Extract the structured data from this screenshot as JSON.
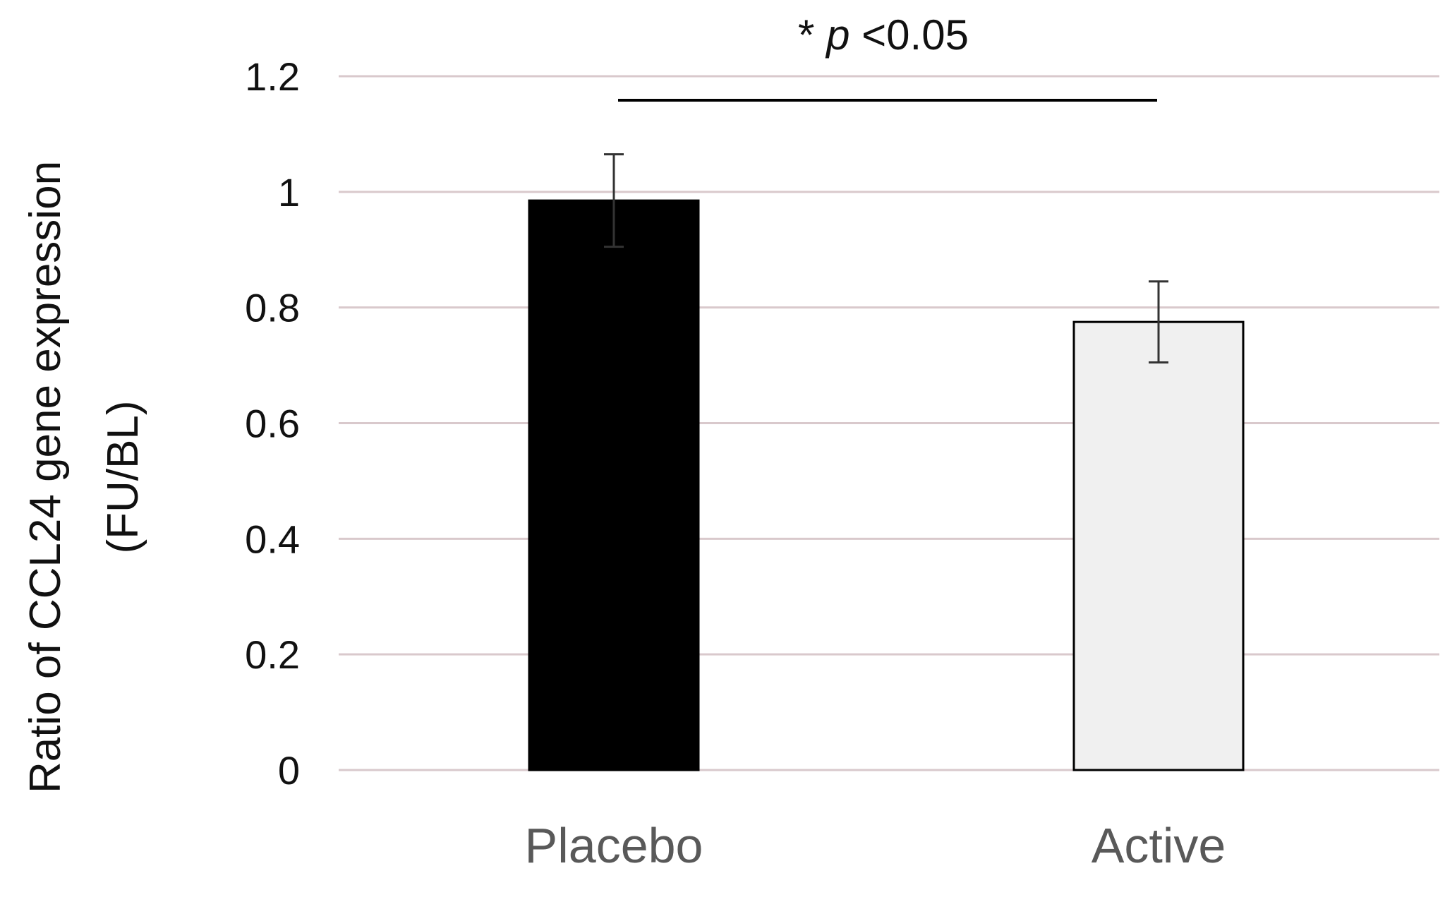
{
  "chart_data": {
    "type": "bar",
    "categories": [
      "Placebo",
      "Active"
    ],
    "values": [
      0.985,
      0.775
    ],
    "error": [
      0.08,
      0.07
    ],
    "bar_colors": [
      "#000000",
      "#f0f0f0"
    ],
    "ylabel_lines": [
      "Ratio of CCL24 gene expression",
      "(FU/BL)"
    ],
    "xlabel": "",
    "ylim": [
      0,
      1.2
    ],
    "yticks": [
      0,
      0.2,
      0.4,
      0.6,
      0.8,
      1,
      1.2
    ],
    "ytick_labels": [
      "0",
      "0.2",
      "0.4",
      "0.6",
      "0.8",
      "1",
      "1.2"
    ],
    "grid": true,
    "gridline_color": "#d9c9cc",
    "annotation": {
      "prefix": "* ",
      "italic": "p",
      "suffix": " <0.05",
      "between": [
        "Placebo",
        "Active"
      ]
    }
  }
}
